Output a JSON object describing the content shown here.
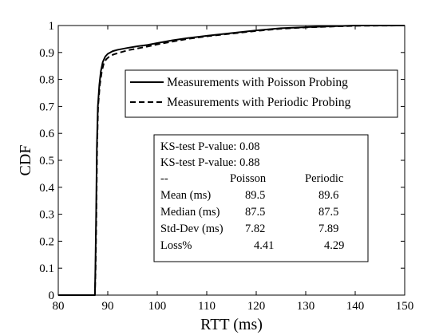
{
  "chart_data": {
    "type": "line",
    "title": "",
    "xlabel": "RTT (ms)",
    "ylabel": "CDF",
    "xlim": [
      80,
      150
    ],
    "ylim": [
      0,
      1
    ],
    "x_ticks": [
      80,
      90,
      100,
      110,
      120,
      130,
      140,
      150
    ],
    "y_ticks": [
      0,
      0.1,
      0.2,
      0.3,
      0.4,
      0.5,
      0.6,
      0.7,
      0.8,
      0.9,
      1
    ],
    "grid": false,
    "legend": {
      "position": "top-right",
      "entries": [
        {
          "label": "Measurements with Poisson Probing",
          "style": "solid"
        },
        {
          "label": "Measurements with Periodic Probing",
          "style": "dashed"
        }
      ]
    },
    "series": [
      {
        "name": "Measurements with Poisson Probing",
        "style": "solid",
        "color": "#000000",
        "x": [
          80,
          87.4,
          87.5,
          87.65,
          87.8,
          88.0,
          88.3,
          88.6,
          89.0,
          89.5,
          90.0,
          91.0,
          92.0,
          94.0,
          96.0,
          98.0,
          100.0,
          103.0,
          106.0,
          110.0,
          115.0,
          120.0,
          125.0,
          130.0,
          135.0,
          140.0,
          150.0
        ],
        "y": [
          0,
          0,
          0.1,
          0.3,
          0.55,
          0.7,
          0.78,
          0.83,
          0.865,
          0.885,
          0.895,
          0.905,
          0.91,
          0.917,
          0.923,
          0.928,
          0.935,
          0.945,
          0.953,
          0.962,
          0.972,
          0.982,
          0.99,
          0.994,
          0.997,
          1.0,
          1.0
        ]
      },
      {
        "name": "Measurements with Periodic Probing",
        "style": "dashed",
        "color": "#000000",
        "x": [
          80,
          87.4,
          87.55,
          87.7,
          87.85,
          88.05,
          88.4,
          88.8,
          89.2,
          89.7,
          90.3,
          91.2,
          92.5,
          94.0,
          96.0,
          98.0,
          100.0,
          103.0,
          106.0,
          110.0,
          115.0,
          120.0,
          125.0,
          130.0,
          135.0,
          140.0,
          150.0
        ],
        "y": [
          0,
          0,
          0.1,
          0.3,
          0.55,
          0.7,
          0.78,
          0.83,
          0.86,
          0.875,
          0.885,
          0.893,
          0.9,
          0.908,
          0.915,
          0.922,
          0.93,
          0.94,
          0.95,
          0.96,
          0.97,
          0.98,
          0.988,
          0.993,
          0.996,
          0.999,
          1.0
        ]
      }
    ]
  },
  "stats_box": {
    "ks_poisson": "KS-test P-value: 0.08",
    "ks_periodic": "KS-test P-value: 0.88",
    "header": {
      "label": "--",
      "poisson": "Poisson",
      "periodic": "Periodic"
    },
    "rows": [
      {
        "label": "Mean (ms)",
        "poisson": "89.5",
        "periodic": "89.6"
      },
      {
        "label": "Median (ms)",
        "poisson": "87.5",
        "periodic": "87.5"
      },
      {
        "label": "Std-Dev (ms)",
        "poisson": "7.82",
        "periodic": "7.89"
      },
      {
        "label": "Loss%",
        "poisson": "4.41",
        "periodic": "4.29"
      }
    ]
  }
}
